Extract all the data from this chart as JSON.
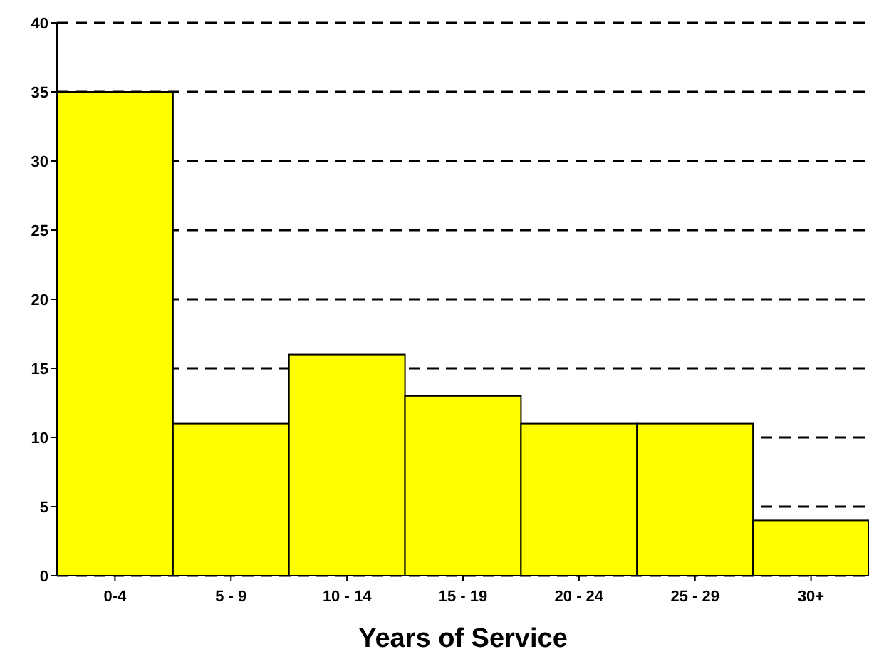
{
  "chart_data": {
    "type": "bar",
    "xlabel": "Years of Service",
    "categories": [
      "0-4",
      "5 - 9",
      "10 - 14",
      "15 - 19",
      "20 - 24",
      "25 - 29",
      "30+"
    ],
    "values": [
      35,
      11,
      16,
      13,
      11,
      11,
      4
    ],
    "color": "#ffff00",
    "ylim": [
      0,
      40
    ],
    "yticks": [
      0,
      5,
      10,
      15,
      20,
      25,
      30,
      35,
      40
    ],
    "grid": "y"
  }
}
